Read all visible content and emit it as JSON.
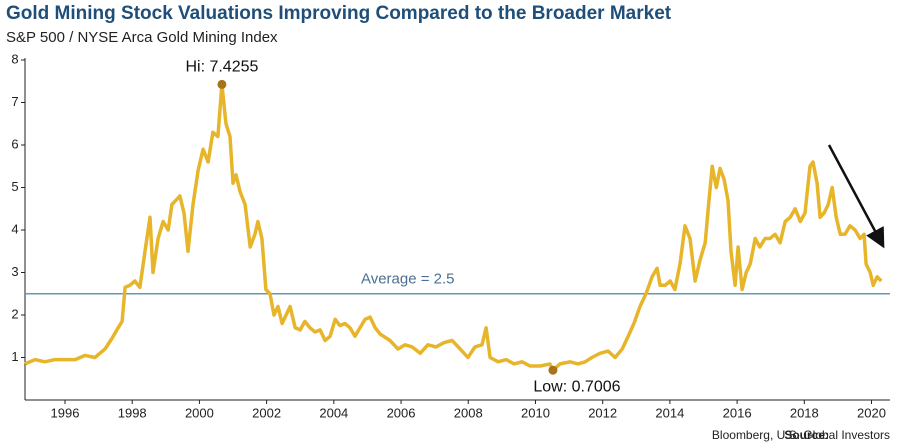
{
  "chart_data": {
    "type": "line",
    "title": "Gold Mining Stock Valuations Improving Compared to the Broader Market",
    "subtitle": "S&P 500 / NYSE Arca Gold Mining Index",
    "source_label": "Source:",
    "source": "Bloomberg, U.S. Global Investors",
    "xlim": [
      1994.81,
      2020.55
    ],
    "ylim": [
      0,
      8
    ],
    "xticks": [
      1996,
      1998,
      2000,
      2002,
      2004,
      2006,
      2008,
      2010,
      2012,
      2014,
      2016,
      2018,
      2020
    ],
    "yticks": [
      1,
      2,
      3,
      4,
      5,
      6,
      7,
      8
    ],
    "grid": false,
    "x": [
      1994.81,
      1995.11,
      1995.4,
      1995.7,
      1996.0,
      1996.3,
      1996.6,
      1996.89,
      1997.19,
      1997.4,
      1997.58,
      1997.7,
      1997.79,
      1997.93,
      1998.08,
      1998.23,
      1998.38,
      1998.53,
      1998.62,
      1998.77,
      1998.92,
      1999.07,
      1999.18,
      1999.3,
      1999.42,
      1999.54,
      1999.66,
      1999.81,
      1999.96,
      2000.11,
      2000.26,
      2000.4,
      2000.55,
      2000.67,
      2000.79,
      2000.91,
      2001.0,
      2001.09,
      2001.21,
      2001.36,
      2001.51,
      2001.65,
      2001.74,
      2001.86,
      2001.98,
      2002.1,
      2002.22,
      2002.34,
      2002.46,
      2002.58,
      2002.7,
      2002.85,
      2003.0,
      2003.14,
      2003.29,
      2003.44,
      2003.59,
      2003.74,
      2003.89,
      2004.04,
      2004.18,
      2004.33,
      2004.48,
      2004.63,
      2004.78,
      2004.93,
      2005.08,
      2005.23,
      2005.38,
      2005.67,
      2005.91,
      2006.12,
      2006.33,
      2006.57,
      2006.8,
      2007.04,
      2007.28,
      2007.52,
      2007.76,
      2007.99,
      2008.2,
      2008.41,
      2008.53,
      2008.65,
      2008.89,
      2009.13,
      2009.36,
      2009.6,
      2009.84,
      2010.14,
      2010.43,
      2010.52,
      2010.73,
      2011.03,
      2011.27,
      2011.48,
      2011.68,
      2011.92,
      2012.16,
      2012.37,
      2012.58,
      2012.76,
      2012.93,
      2013.11,
      2013.29,
      2013.47,
      2013.62,
      2013.71,
      2013.86,
      2014.01,
      2014.15,
      2014.3,
      2014.45,
      2014.6,
      2014.75,
      2014.9,
      2015.05,
      2015.14,
      2015.26,
      2015.38,
      2015.49,
      2015.61,
      2015.73,
      2015.82,
      2015.94,
      2016.03,
      2016.15,
      2016.27,
      2016.39,
      2016.54,
      2016.68,
      2016.83,
      2016.98,
      2017.13,
      2017.28,
      2017.43,
      2017.58,
      2017.73,
      2017.88,
      2018.02,
      2018.17,
      2018.26,
      2018.38,
      2018.47,
      2018.59,
      2018.71,
      2018.83,
      2018.95,
      2019.07,
      2019.21,
      2019.36,
      2019.51,
      2019.66,
      2019.78,
      2019.84,
      2019.96,
      2020.05,
      2020.17,
      2020.29
    ],
    "series": [
      {
        "color": "#e7b52a",
        "values": [
          0.85,
          0.95,
          0.9,
          0.95,
          0.95,
          0.95,
          1.05,
          1.0,
          1.2,
          1.45,
          1.7,
          1.85,
          2.65,
          2.7,
          2.8,
          2.65,
          3.5,
          4.3,
          3.0,
          3.8,
          4.2,
          4.0,
          4.6,
          4.7,
          4.8,
          4.4,
          3.5,
          4.6,
          5.4,
          5.9,
          5.6,
          6.3,
          6.2,
          7.4255,
          6.5,
          6.2,
          5.1,
          5.3,
          4.9,
          4.6,
          3.6,
          3.9,
          4.2,
          3.8,
          2.6,
          2.5,
          2.0,
          2.2,
          1.8,
          2.0,
          2.2,
          1.7,
          1.65,
          1.85,
          1.7,
          1.6,
          1.65,
          1.4,
          1.5,
          1.9,
          1.75,
          1.8,
          1.7,
          1.5,
          1.7,
          1.9,
          1.95,
          1.7,
          1.55,
          1.4,
          1.2,
          1.3,
          1.25,
          1.1,
          1.3,
          1.25,
          1.35,
          1.4,
          1.2,
          1.0,
          1.25,
          1.3,
          1.7,
          1.0,
          0.9,
          0.95,
          0.85,
          0.9,
          0.8,
          0.8,
          0.85,
          0.7006,
          0.85,
          0.9,
          0.85,
          0.9,
          1.0,
          1.1,
          1.15,
          1.0,
          1.2,
          1.5,
          1.8,
          2.2,
          2.5,
          2.9,
          3.1,
          2.7,
          2.7,
          2.8,
          2.6,
          3.2,
          4.1,
          3.8,
          2.8,
          3.3,
          3.7,
          4.5,
          5.5,
          5.0,
          5.45,
          5.2,
          4.7,
          3.5,
          2.7,
          3.6,
          2.6,
          3.0,
          3.2,
          3.8,
          3.6,
          3.8,
          3.8,
          3.9,
          3.7,
          4.2,
          4.3,
          4.5,
          4.2,
          4.4,
          5.5,
          5.6,
          5.1,
          4.3,
          4.4,
          4.6,
          5.0,
          4.3,
          3.9,
          3.9,
          4.1,
          4.0,
          3.8,
          3.9,
          3.2,
          3.0,
          2.7,
          2.9,
          2.8
        ]
      }
    ],
    "annotations": [
      {
        "text": "Hi: 7.4255",
        "x": 2000.67,
        "y": 7.4255
      },
      {
        "text": "Low: 0.7006",
        "x": 2010.52,
        "y": 0.7006
      }
    ],
    "reference_line": {
      "text": "Average = 2.5",
      "value": 2.5,
      "color": "#5f9ab6"
    }
  }
}
